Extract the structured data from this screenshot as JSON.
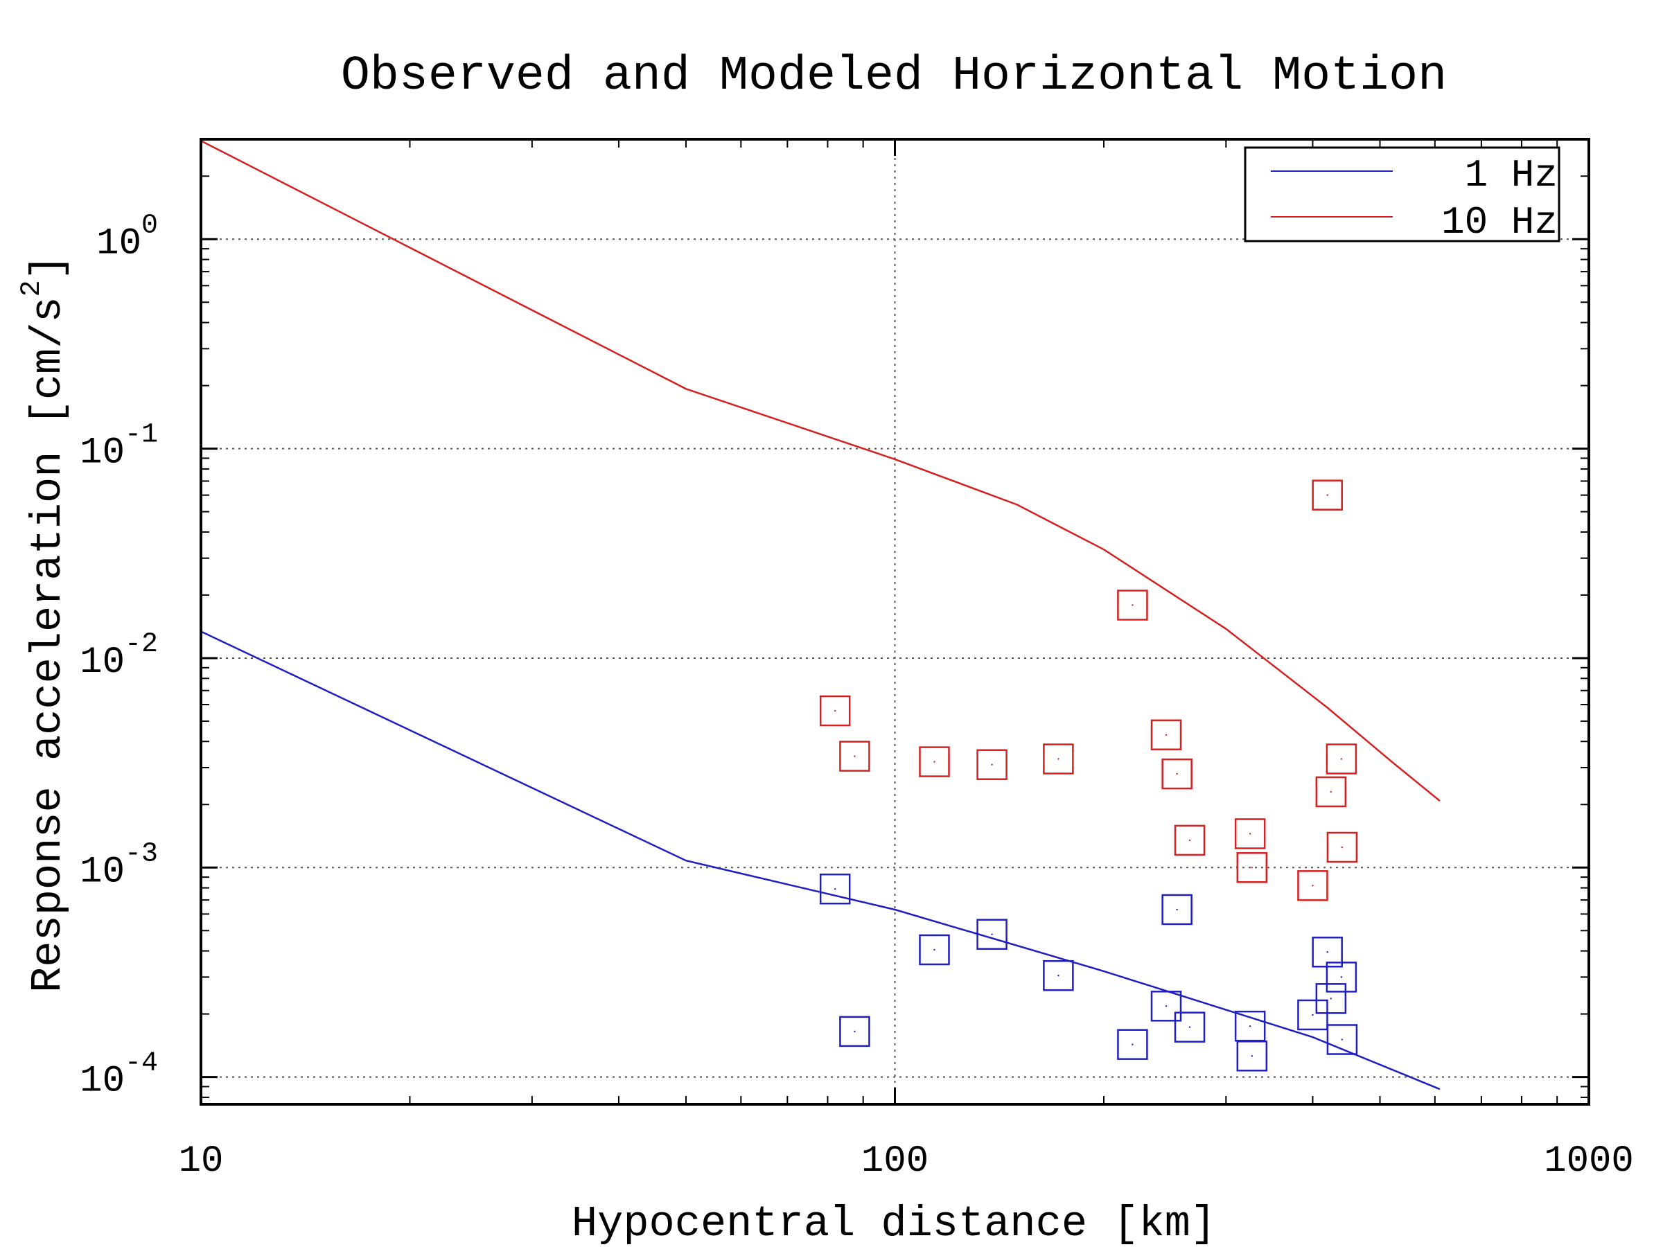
{
  "chart_data": {
    "type": "scatter",
    "title": "Observed and Modeled Horizontal Motion",
    "xlabel": "Hypocentral distance [km]",
    "ylabel_main": "Response acceleration [cm/s",
    "ylabel_sup": "2",
    "ylabel_end": "]",
    "x_scale": "log",
    "y_scale": "log",
    "xlim": [
      10,
      1000
    ],
    "ylim": [
      7.41e-05,
      3.0
    ],
    "x_ticks": [
      {
        "value": 10,
        "label": "10"
      },
      {
        "value": 100,
        "label": "100"
      },
      {
        "value": 1000,
        "label": "1000"
      }
    ],
    "y_ticks": [
      {
        "value": 0.0001,
        "base": "10",
        "exp": "-4"
      },
      {
        "value": 0.001,
        "base": "10",
        "exp": "-3"
      },
      {
        "value": 0.01,
        "base": "10",
        "exp": "-2"
      },
      {
        "value": 0.1,
        "base": "10",
        "exp": "-1"
      },
      {
        "value": 1,
        "base": "10",
        "exp": "0"
      }
    ],
    "grid": true,
    "legend_position": "top-right",
    "colors": {
      "blue": "#1f1fc0",
      "red": "#d42020"
    },
    "series": [
      {
        "name": "1 Hz",
        "color": "#1f1fc0",
        "model_line": [
          [
            10,
            0.0134
          ],
          [
            50,
            0.00108
          ],
          [
            100,
            0.00063
          ],
          [
            200,
            0.00032
          ],
          [
            400,
            0.000155
          ],
          [
            610,
            8.75e-05
          ]
        ],
        "observed": [
          [
            82,
            0.00079
          ],
          [
            87.5,
            0.000165
          ],
          [
            114,
            0.000405
          ],
          [
            138,
            0.00048
          ],
          [
            172,
            0.000305
          ],
          [
            220,
            0.000143
          ],
          [
            246,
            0.000218
          ],
          [
            255,
            0.00063
          ],
          [
            266,
            0.000173
          ],
          [
            325,
            0.000175
          ],
          [
            327,
            0.000126
          ],
          [
            400,
            0.000198
          ],
          [
            420,
            0.000395
          ],
          [
            425,
            0.000237
          ],
          [
            440,
            0.0003
          ],
          [
            441,
            0.000151
          ]
        ]
      },
      {
        "name": "10 Hz",
        "color": "#d42020",
        "model_line": [
          [
            10,
            2.95
          ],
          [
            50,
            0.193
          ],
          [
            100,
            0.089
          ],
          [
            150,
            0.054
          ],
          [
            200,
            0.033
          ],
          [
            300,
            0.0138
          ],
          [
            420,
            0.0058
          ],
          [
            520,
            0.0032
          ],
          [
            610,
            0.00208
          ]
        ],
        "observed": [
          [
            82,
            0.0056
          ],
          [
            87.5,
            0.0034
          ],
          [
            114,
            0.0032
          ],
          [
            138,
            0.0031
          ],
          [
            172,
            0.0033
          ],
          [
            220,
            0.0179
          ],
          [
            246,
            0.0043
          ],
          [
            255,
            0.0028
          ],
          [
            266,
            0.00135
          ],
          [
            325,
            0.00145
          ],
          [
            327,
            0.001
          ],
          [
            400,
            0.00082
          ],
          [
            420,
            0.06
          ],
          [
            425,
            0.0023
          ],
          [
            440,
            0.0033
          ],
          [
            441,
            0.00125
          ]
        ]
      }
    ]
  }
}
